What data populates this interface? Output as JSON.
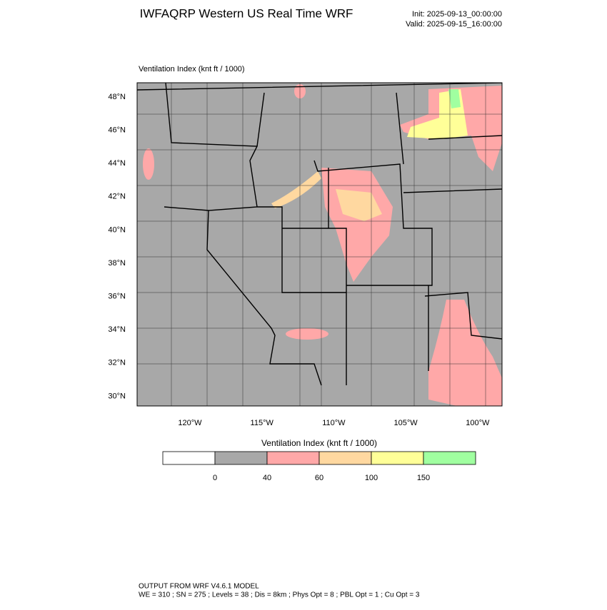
{
  "header": {
    "title": "IWFAQRP Western US Real Time WRF",
    "init": "Init: 2025-09-13_00:00:00",
    "valid": "Valid: 2025-09-15_16:00:00"
  },
  "map": {
    "subtitle": "Ventilation Index   (knt ft / 1000)",
    "lat_labels": [
      "48°N",
      "46°N",
      "44°N",
      "42°N",
      "40°N",
      "38°N",
      "36°N",
      "34°N",
      "32°N",
      "30°N"
    ],
    "lon_labels": [
      "120°W",
      "115°W",
      "110°W",
      "105°W",
      "100°W"
    ]
  },
  "colorbar": {
    "title": "Ventilation Index   (knt ft / 1000)",
    "colors": [
      "#ffffff",
      "#a8a8a8",
      "#ffa8a8",
      "#ffd8a0",
      "#ffff98",
      "#a0ffa0"
    ],
    "ticks": [
      0,
      40,
      60,
      100,
      150
    ]
  },
  "footer": {
    "line1": "OUTPUT FROM WRF V4.6.1 MODEL",
    "line2": "WE = 310 ; SN = 275 ; Levels = 38 ; Dis = 8km ; Phys Opt = 8 ; PBL Opt = 1 ; Cu Opt = 3"
  }
}
